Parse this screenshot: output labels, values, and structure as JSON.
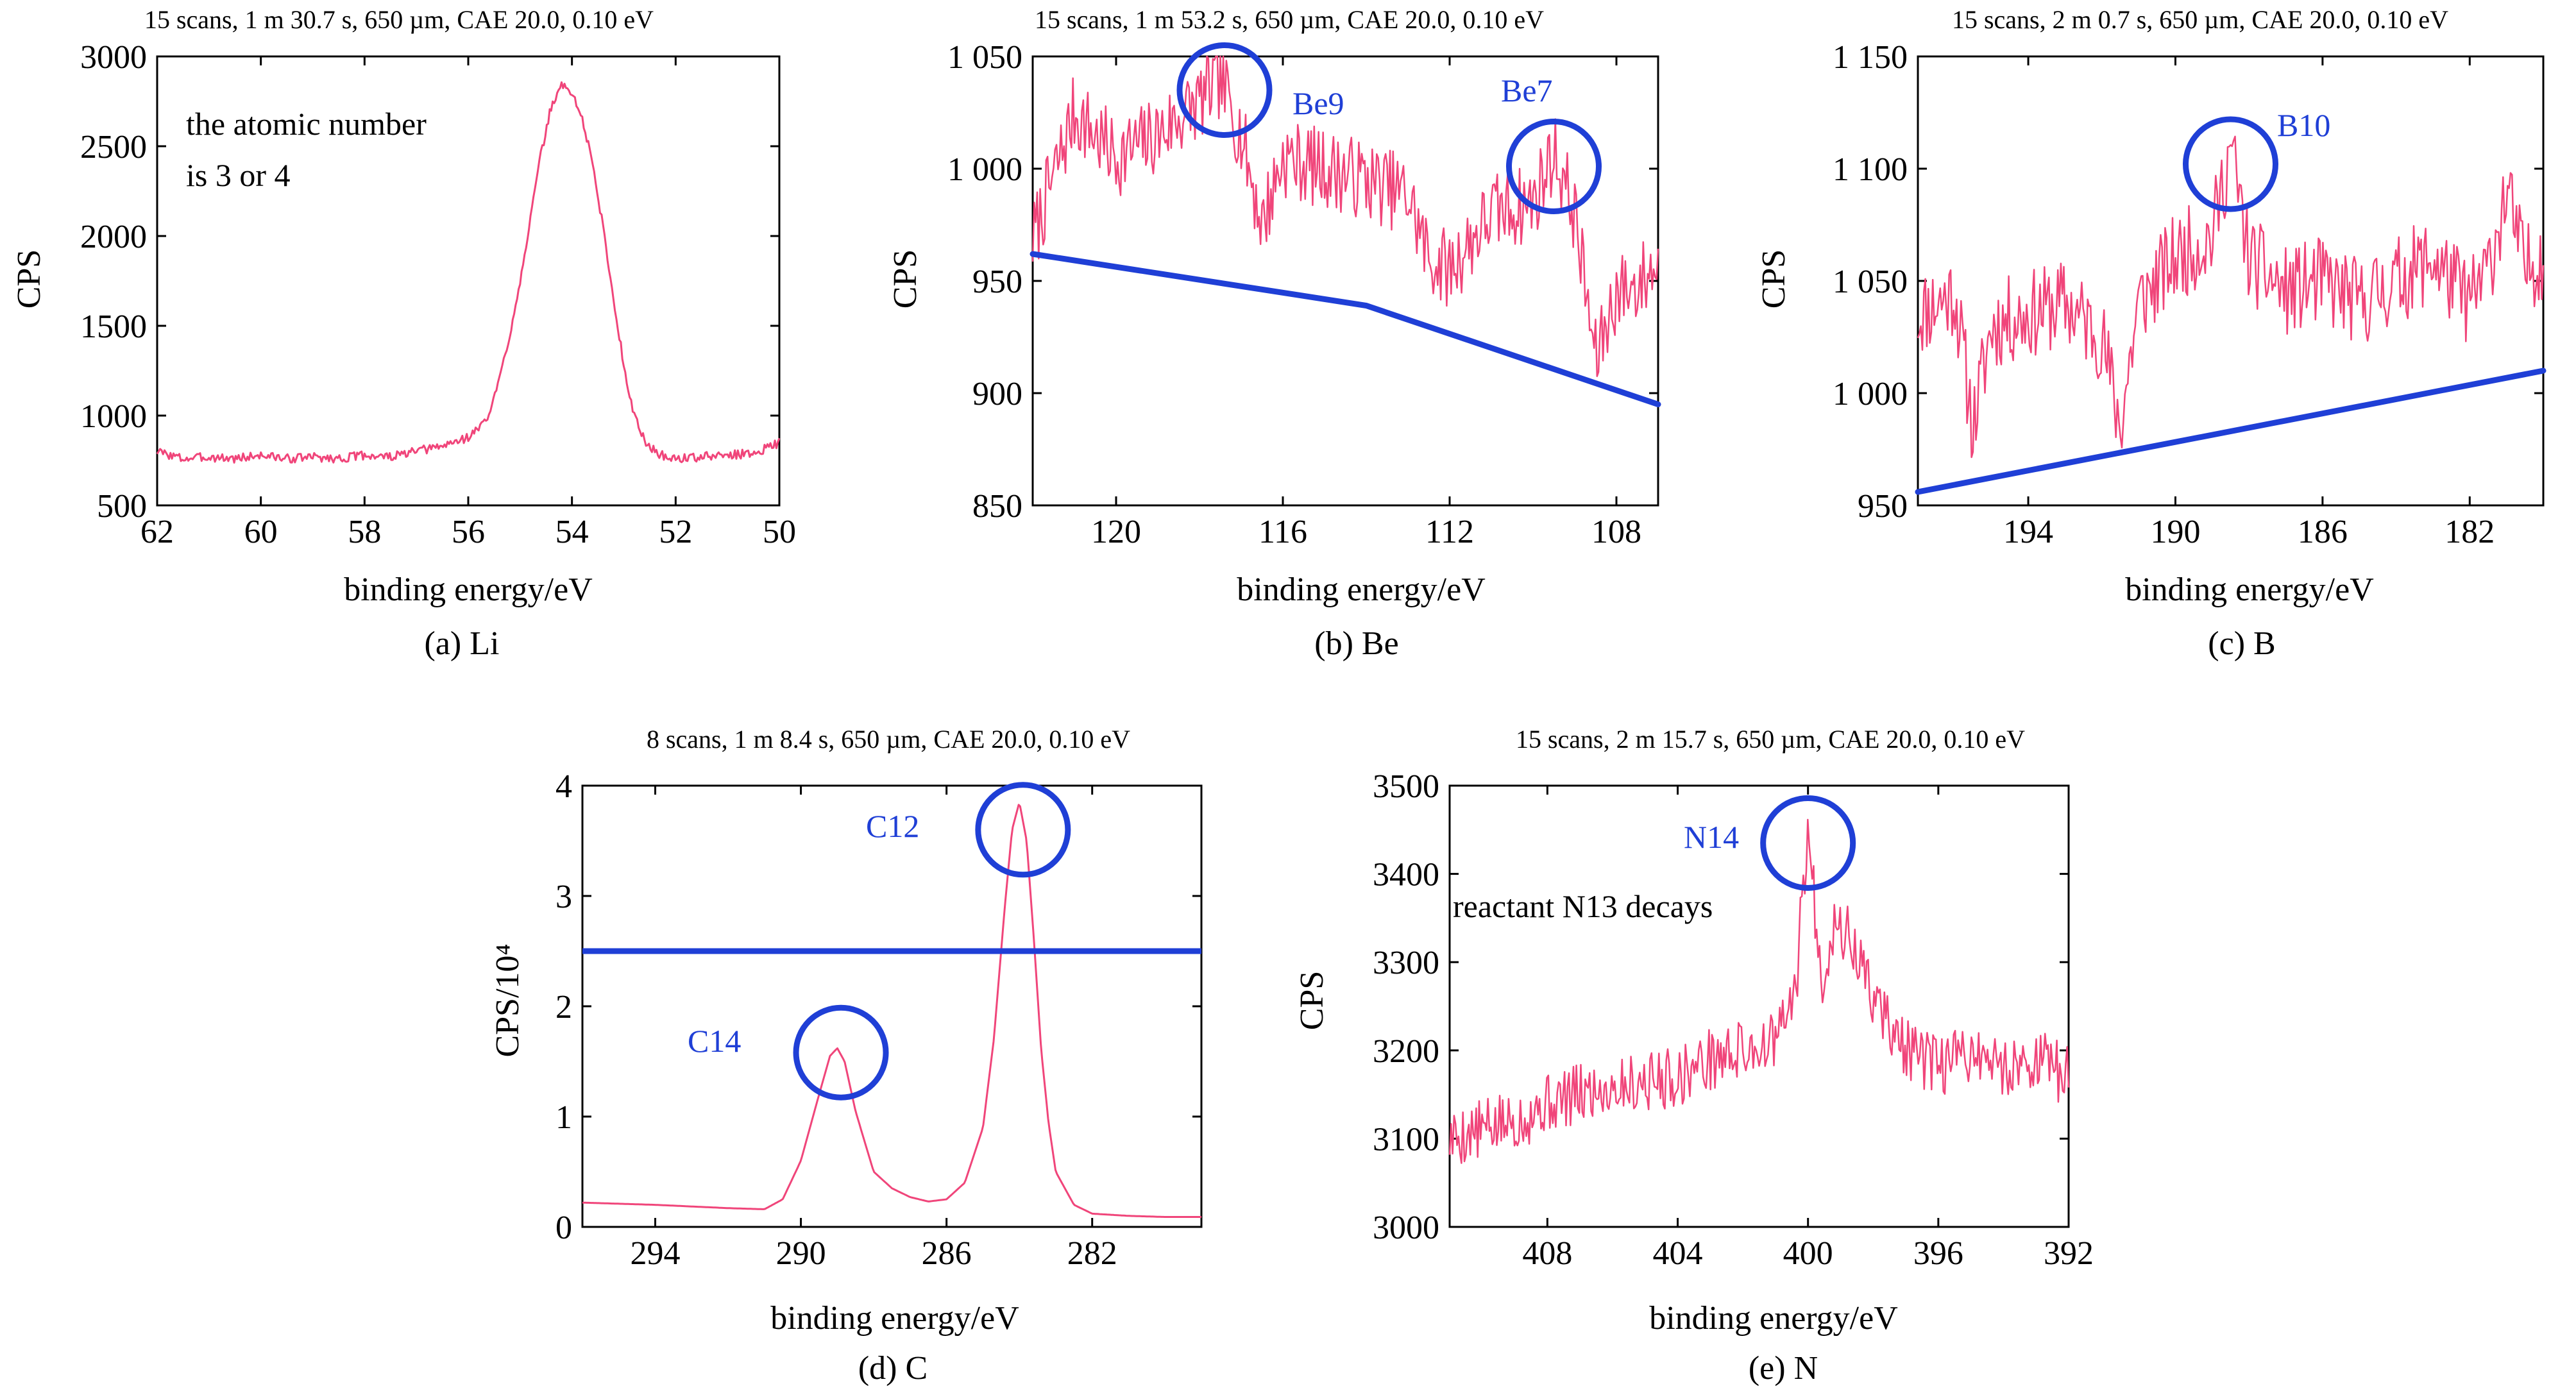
{
  "figure": {
    "panels": [
      {
        "id": "li",
        "caption": "(a) Li",
        "header": "15 scans, 1 m 30.7 s, 650 µm, CAE 20.0, 0.10 eV",
        "annotations": [
          {
            "id": "atomic-number-note-1",
            "text": "the atomic number",
            "color": "#000000"
          },
          {
            "id": "atomic-number-note-2",
            "text": "is 3 or 4",
            "color": "#000000"
          }
        ]
      },
      {
        "id": "be",
        "caption": "(b) Be",
        "header": "15 scans, 1 m 53.2 s, 650 µm, CAE 20.0, 0.10 eV",
        "annotations": [
          {
            "id": "be9-label",
            "text": "Be9",
            "color": "#1f3fd6"
          },
          {
            "id": "be7-label",
            "text": "Be7",
            "color": "#1f3fd6"
          }
        ]
      },
      {
        "id": "b",
        "caption": "(c) B",
        "header": "15 scans, 2 m 0.7 s, 650 µm, CAE 20.0, 0.10 eV",
        "annotations": [
          {
            "id": "b10-label",
            "text": "B10",
            "color": "#1f3fd6"
          }
        ]
      },
      {
        "id": "c",
        "caption": "(d) C",
        "header": "8 scans, 1 m 8.4 s, 650 µm, CAE 20.0, 0.10 eV",
        "annotations": [
          {
            "id": "c12-label",
            "text": "C12",
            "color": "#1f3fd6"
          },
          {
            "id": "c14-label",
            "text": "C14",
            "color": "#1f3fd6"
          }
        ]
      },
      {
        "id": "n",
        "caption": "(e) N",
        "header": "15 scans, 2 m 15.7 s, 650 µm, CAE 20.0, 0.10 eV",
        "annotations": [
          {
            "id": "n14-label",
            "text": "N14",
            "color": "#1f3fd6"
          },
          {
            "id": "n13-note",
            "text": "reactant N13 decays",
            "color": "#000000"
          }
        ]
      }
    ]
  },
  "chart_data": [
    {
      "id": "li",
      "type": "line",
      "xlabel": "binding energy/eV",
      "ylabel": "CPS",
      "xlim": [
        62,
        50
      ],
      "ylim": [
        500,
        3000
      ],
      "xticks": [
        62,
        60,
        58,
        56,
        54,
        52,
        50
      ],
      "xtick_labels": [
        "62",
        "60",
        "58",
        "56",
        "54",
        "52",
        "50"
      ],
      "yticks": [
        500,
        1000,
        1500,
        2000,
        2500,
        3000
      ],
      "ytick_labels": [
        "500",
        "1000",
        "1500",
        "2000",
        "2500",
        "3000"
      ],
      "line_color": "#f0457a",
      "line_width": 3,
      "noise": 25,
      "noise_seed": 3,
      "x": [
        62,
        61.5,
        61,
        60.5,
        60,
        59.5,
        59,
        58.5,
        58,
        57.5,
        57,
        56.5,
        56,
        55.8,
        55.6,
        55.4,
        55.2,
        55,
        54.8,
        54.6,
        54.4,
        54.2,
        54,
        53.8,
        53.6,
        53.4,
        53.2,
        53,
        52.8,
        52.6,
        52.4,
        52.2,
        52,
        51.5,
        51,
        50.5,
        50
      ],
      "y": [
        800,
        760,
        770,
        760,
        780,
        760,
        770,
        760,
        780,
        770,
        800,
        830,
        880,
        930,
        1000,
        1200,
        1450,
        1750,
        2100,
        2450,
        2720,
        2840,
        2800,
        2650,
        2400,
        2050,
        1650,
        1280,
        1000,
        860,
        800,
        770,
        760,
        770,
        780,
        790,
        850
      ],
      "circles": [],
      "hline": null
    },
    {
      "id": "be",
      "type": "line",
      "xlabel": "binding energy/eV",
      "ylabel": "CPS",
      "xlim": [
        122,
        107
      ],
      "ylim": [
        850,
        1050
      ],
      "xticks": [
        120,
        116,
        112,
        108
      ],
      "xtick_labels": [
        "120",
        "116",
        "112",
        "108"
      ],
      "yticks": [
        850,
        900,
        950,
        1000,
        1050
      ],
      "ytick_labels": [
        "850",
        "900",
        "950",
        "1 000",
        "1 050"
      ],
      "line_color": "#f0457a",
      "line_width": 2.5,
      "noise": 18,
      "noise_seed": 7,
      "x": [
        122,
        121,
        120,
        119,
        118,
        117.5,
        117,
        116.5,
        116,
        115,
        114,
        113,
        112.5,
        112,
        111,
        110,
        109.5,
        109,
        108.5,
        108,
        107.5,
        107
      ],
      "y": [
        968,
        1025,
        1005,
        1015,
        1030,
        1040,
        1015,
        975,
        1005,
        1000,
        995,
        988,
        960,
        955,
        980,
        985,
        1008,
        980,
        915,
        945,
        948,
        958
      ],
      "circles": [
        {
          "x": 117.4,
          "y": 1035
        },
        {
          "x": 109.5,
          "y": 1001
        }
      ],
      "baseline": {
        "x": [
          122,
          114,
          107
        ],
        "y": [
          962,
          939,
          895
        ],
        "color": "#1f3fd6",
        "width": 9
      },
      "hline": null
    },
    {
      "id": "b",
      "type": "line",
      "xlabel": "binding energy/eV",
      "ylabel": "CPS",
      "xlim": [
        197,
        180
      ],
      "ylim": [
        950,
        1150
      ],
      "xticks": [
        194,
        190,
        186,
        182
      ],
      "xtick_labels": [
        "194",
        "190",
        "186",
        "182"
      ],
      "yticks": [
        950,
        1000,
        1050,
        1100,
        1150
      ],
      "ytick_labels": [
        "950",
        "1 000",
        "1 050",
        "1 100",
        "1 150"
      ],
      "line_color": "#f0457a",
      "line_width": 2.5,
      "noise": 20,
      "noise_seed": 11,
      "x": [
        197,
        196,
        195.5,
        195,
        194,
        193,
        192,
        191.5,
        191,
        190,
        189,
        188.5,
        188,
        187,
        186,
        185,
        184,
        183,
        182,
        181.5,
        181,
        180.5,
        180
      ],
      "y": [
        1035,
        1045,
        985,
        1030,
        1035,
        1040,
        1025,
        985,
        1040,
        1060,
        1070,
        1110,
        1060,
        1045,
        1050,
        1040,
        1050,
        1060,
        1040,
        1055,
        1090,
        1055,
        1062
      ],
      "circles": [
        {
          "x": 188.5,
          "y": 1102
        }
      ],
      "baseline": {
        "x": [
          197,
          180
        ],
        "y": [
          956,
          1010
        ],
        "color": "#1f3fd6",
        "width": 9
      },
      "hline": null
    },
    {
      "id": "c",
      "type": "line",
      "xlabel": "binding energy/eV",
      "ylabel": "CPS/10⁴",
      "xlim": [
        296,
        279
      ],
      "ylim": [
        0,
        4
      ],
      "xticks": [
        294,
        290,
        286,
        282
      ],
      "xtick_labels": [
        "294",
        "290",
        "286",
        "282"
      ],
      "yticks": [
        0,
        1,
        2,
        3,
        4
      ],
      "ytick_labels": [
        "0",
        "1",
        "2",
        "3",
        "4"
      ],
      "line_color": "#f0457a",
      "line_width": 3,
      "noise": 0,
      "noise_seed": 1,
      "x": [
        296,
        294,
        292,
        291,
        290.5,
        290,
        289.5,
        289.2,
        289,
        288.8,
        288.5,
        288,
        287.5,
        287,
        286.5,
        286,
        285.5,
        285,
        284.7,
        284.4,
        284.2,
        284,
        283.8,
        283.6,
        283.4,
        283.2,
        283,
        282.5,
        282,
        281,
        280,
        279
      ],
      "y": [
        0.22,
        0.2,
        0.17,
        0.16,
        0.25,
        0.6,
        1.2,
        1.55,
        1.62,
        1.5,
        1.05,
        0.5,
        0.35,
        0.27,
        0.23,
        0.25,
        0.4,
        0.9,
        1.7,
        2.9,
        3.6,
        3.85,
        3.5,
        2.6,
        1.6,
        0.95,
        0.5,
        0.2,
        0.12,
        0.1,
        0.09,
        0.09
      ],
      "circles": [
        {
          "x": 283.9,
          "y": 3.6
        },
        {
          "x": 288.9,
          "y": 1.58
        }
      ],
      "hline": {
        "y": 2.5,
        "color": "#1f3fd6",
        "width": 9
      },
      "baseline": null
    },
    {
      "id": "n",
      "type": "line",
      "xlabel": "binding energy/eV",
      "ylabel": "CPS",
      "xlim": [
        411,
        392
      ],
      "ylim": [
        3000,
        3500
      ],
      "xticks": [
        408,
        404,
        400,
        396,
        392
      ],
      "xtick_labels": [
        "408",
        "404",
        "400",
        "396",
        "392"
      ],
      "yticks": [
        3000,
        3100,
        3200,
        3300,
        3400,
        3500
      ],
      "ytick_labels": [
        "3000",
        "3100",
        "3200",
        "3300",
        "3400",
        "3500"
      ],
      "line_color": "#f0457a",
      "line_width": 2.5,
      "noise": 35,
      "noise_seed": 5,
      "x": [
        411,
        410,
        409,
        408,
        407,
        406,
        405,
        404,
        403,
        402,
        401,
        400.4,
        400,
        399.6,
        399.2,
        398.8,
        398.4,
        398,
        397.5,
        397,
        396,
        395,
        394,
        393,
        392
      ],
      "y": [
        3100,
        3110,
        3120,
        3140,
        3150,
        3160,
        3165,
        3170,
        3190,
        3200,
        3210,
        3260,
        3450,
        3280,
        3340,
        3330,
        3300,
        3260,
        3230,
        3200,
        3180,
        3200,
        3180,
        3190,
        3170
      ],
      "circles": [
        {
          "x": 400,
          "y": 3435
        }
      ],
      "hline": null,
      "baseline": null
    }
  ]
}
